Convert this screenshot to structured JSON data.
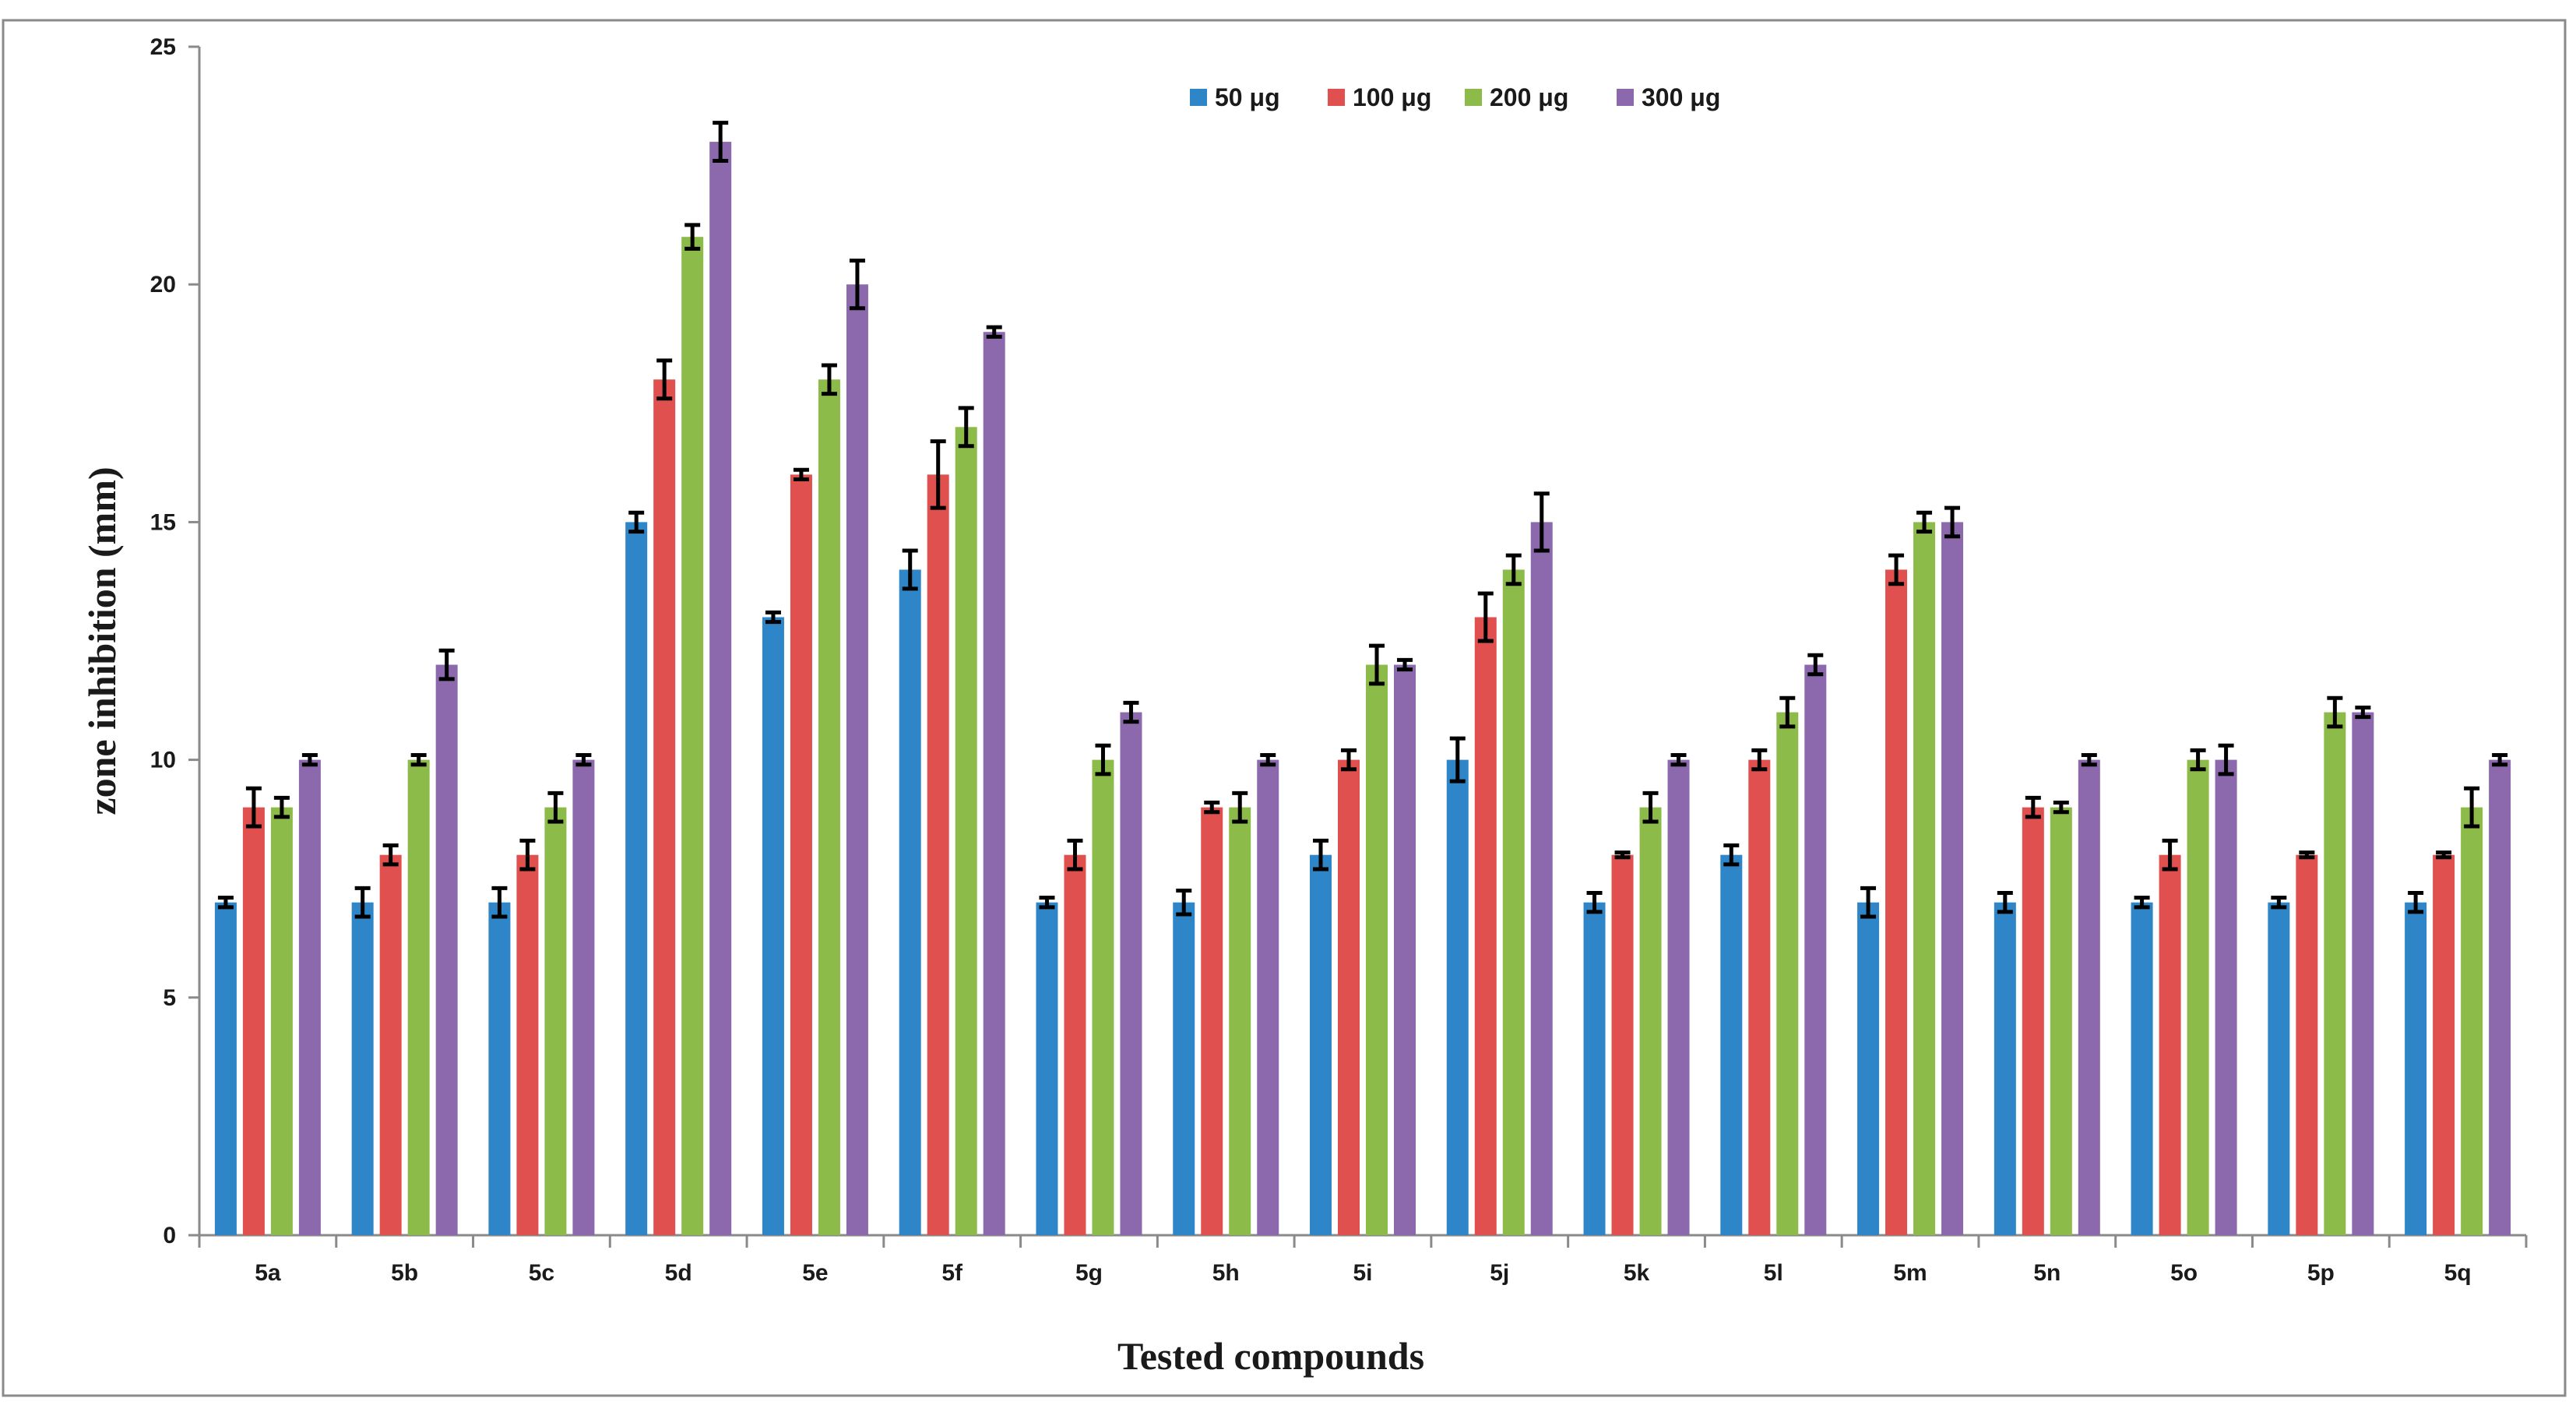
{
  "chart_data": {
    "type": "bar",
    "title": "",
    "xlabel": "Tested compounds",
    "ylabel": "zone inhibition (mm)",
    "ylim": [
      0,
      25
    ],
    "yticks": [
      0,
      5,
      10,
      15,
      20,
      25
    ],
    "grid": false,
    "legend_position": "top-center",
    "categories": [
      "5a",
      "5b",
      "5c",
      "5d",
      "5e",
      "5f",
      "5g",
      "5h",
      "5i",
      "5j",
      "5k",
      "5l",
      "5m",
      "5n",
      "5o",
      "5p",
      "5q"
    ],
    "series": [
      {
        "name": "50 μg",
        "color": "#2e86c8",
        "values": [
          7,
          7,
          7,
          15,
          13,
          14,
          7,
          7,
          8,
          10,
          7,
          8,
          7,
          7,
          7,
          7,
          7
        ],
        "errors": [
          0.1,
          0.3,
          0.3,
          0.2,
          0.1,
          0.4,
          0.1,
          0.25,
          0.3,
          0.45,
          0.2,
          0.2,
          0.3,
          0.2,
          0.1,
          0.1,
          0.2
        ]
      },
      {
        "name": "100 μg",
        "color": "#e0504e",
        "values": [
          9,
          8,
          8,
          18,
          16,
          16,
          8,
          9,
          10,
          13,
          8,
          10,
          14,
          9,
          8,
          8,
          8
        ],
        "errors": [
          0.4,
          0.2,
          0.3,
          0.4,
          0.1,
          0.7,
          0.3,
          0.1,
          0.2,
          0.5,
          0.05,
          0.2,
          0.3,
          0.2,
          0.3,
          0.05,
          0.05
        ]
      },
      {
        "name": "200 μg",
        "color": "#8dbb4a",
        "values": [
          9,
          10,
          9,
          21,
          18,
          17,
          10,
          9,
          12,
          14,
          9,
          11,
          15,
          9,
          10,
          11,
          9
        ],
        "errors": [
          0.2,
          0.1,
          0.3,
          0.25,
          0.3,
          0.4,
          0.3,
          0.3,
          0.4,
          0.3,
          0.3,
          0.3,
          0.2,
          0.1,
          0.2,
          0.3,
          0.4
        ]
      },
      {
        "name": "300 μg",
        "color": "#8c69ad",
        "values": [
          10,
          12,
          10,
          23,
          20,
          19,
          11,
          10,
          12,
          15,
          10,
          12,
          15,
          10,
          10,
          11,
          10
        ],
        "errors": [
          0.1,
          0.3,
          0.1,
          0.4,
          0.5,
          0.1,
          0.2,
          0.1,
          0.1,
          0.6,
          0.1,
          0.2,
          0.3,
          0.1,
          0.3,
          0.1,
          0.1
        ]
      }
    ]
  }
}
